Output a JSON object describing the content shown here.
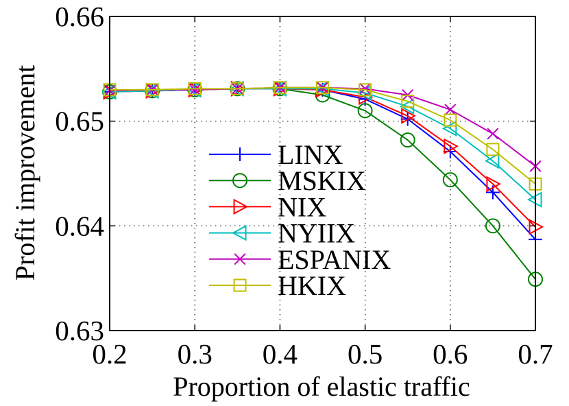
{
  "chart_data": {
    "type": "line",
    "xlabel": "Proportion of elastic traffic",
    "ylabel": "Profit improvement",
    "xlim": [
      0.2,
      0.7
    ],
    "ylim": [
      0.63,
      0.66
    ],
    "xticks": [
      0.2,
      0.3,
      0.4,
      0.5,
      0.6,
      0.7
    ],
    "yticks": [
      0.63,
      0.64,
      0.65,
      0.66
    ],
    "xtick_labels": [
      "0.2",
      "0.3",
      "0.4",
      "0.5",
      "0.6",
      "0.7"
    ],
    "ytick_labels": [
      "0.63",
      "0.64",
      "0.65",
      "0.66"
    ],
    "grid": true,
    "legend_position": "center-left",
    "x": [
      0.2,
      0.25,
      0.3,
      0.35,
      0.4,
      0.45,
      0.5,
      0.55,
      0.6,
      0.65,
      0.7
    ],
    "series": [
      {
        "name": "LINX",
        "color": "#0000ff",
        "marker": "plus",
        "values": [
          0.6528,
          0.6529,
          0.653,
          0.6531,
          0.6531,
          0.653,
          0.6521,
          0.6502,
          0.6471,
          0.6432,
          0.6387
        ]
      },
      {
        "name": "MSKIX",
        "color": "#008000",
        "marker": "circle",
        "values": [
          0.6528,
          0.6529,
          0.653,
          0.6531,
          0.6531,
          0.6525,
          0.651,
          0.6482,
          0.6444,
          0.64,
          0.6349
        ]
      },
      {
        "name": "NIX",
        "color": "#ff0000",
        "marker": "triangle-right",
        "values": [
          0.6528,
          0.6529,
          0.653,
          0.6531,
          0.6531,
          0.653,
          0.6523,
          0.6505,
          0.6476,
          0.644,
          0.6399
        ]
      },
      {
        "name": "NYIIX",
        "color": "#00bfbf",
        "marker": "triangle-left",
        "values": [
          0.6528,
          0.6529,
          0.653,
          0.6531,
          0.6531,
          0.6531,
          0.6527,
          0.6514,
          0.6493,
          0.6462,
          0.6425
        ]
      },
      {
        "name": "ESPANIX",
        "color": "#bf00bf",
        "marker": "x",
        "values": [
          0.6529,
          0.653,
          0.653,
          0.6531,
          0.6532,
          0.6532,
          0.6531,
          0.6525,
          0.6511,
          0.6488,
          0.6457
        ]
      },
      {
        "name": "HKIX",
        "color": "#bfbf00",
        "marker": "square",
        "values": [
          0.653,
          0.653,
          0.6531,
          0.6531,
          0.6532,
          0.6532,
          0.653,
          0.6519,
          0.6501,
          0.6473,
          0.644
        ]
      }
    ]
  }
}
